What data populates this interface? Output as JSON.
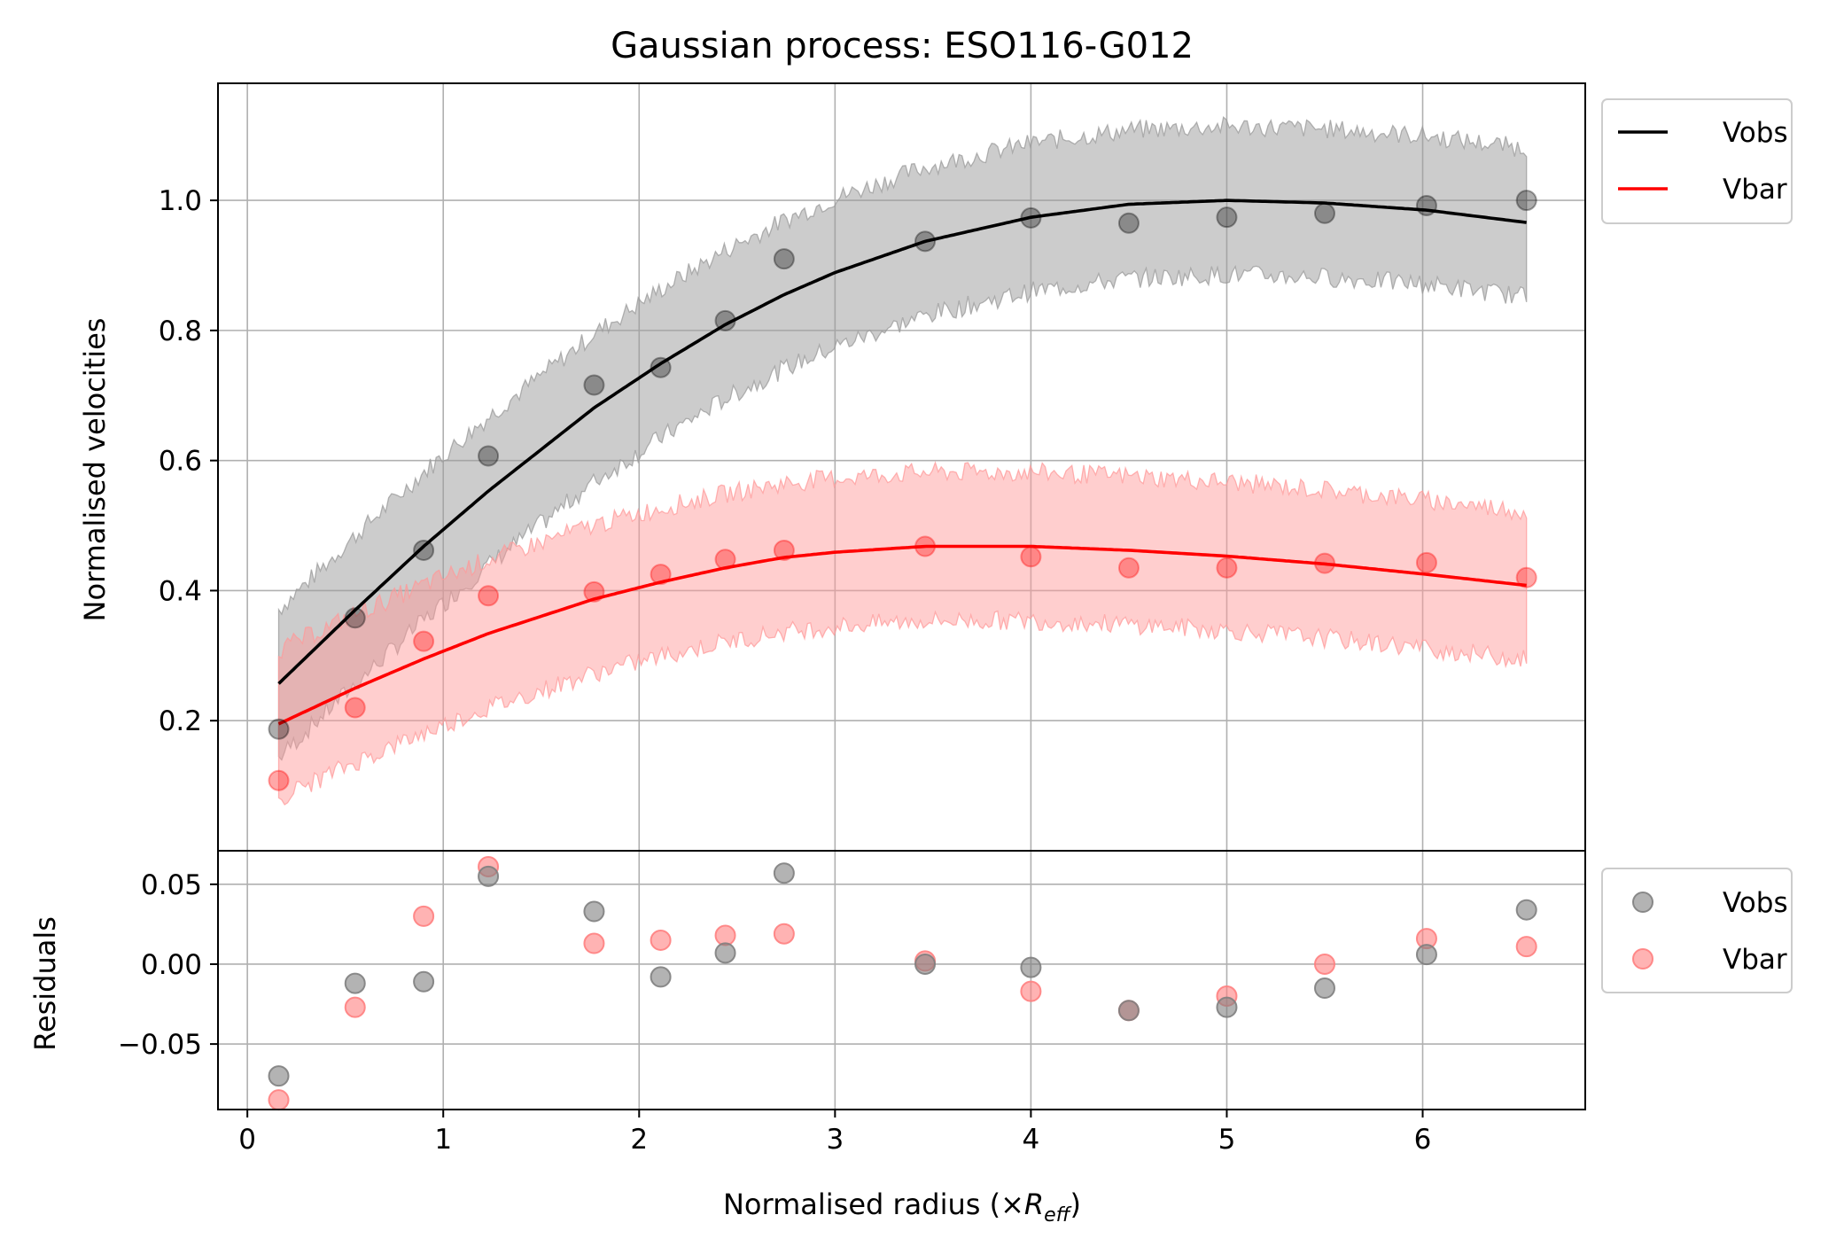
{
  "chart_data": [
    {
      "type": "line",
      "title": "Gaussian process: ESO116-G012",
      "xlabel": "Normalised radius (×",
      "xlabel_math": "R",
      "xlabel_math_sub": "eff",
      "xlabel_close": ")",
      "ylabel": "Normalised velocities",
      "xlim": [
        -0.15,
        6.83
      ],
      "ylim": [
        0.0,
        1.18
      ],
      "xticks": [
        0,
        1,
        2,
        3,
        4,
        5,
        6
      ],
      "xtick_labels": [
        "0",
        "1",
        "2",
        "3",
        "4",
        "5",
        "6"
      ],
      "yticks": [
        0.2,
        0.4,
        0.6,
        0.8,
        1.0
      ],
      "ytick_labels": [
        "0.2",
        "0.4",
        "0.6",
        "0.8",
        "1.0"
      ],
      "grid": true,
      "legend_position": "outside-top-right",
      "legend": [
        "Vobs",
        "Vbar"
      ],
      "radius": [
        0.16,
        0.55,
        0.9,
        1.23,
        1.77,
        2.11,
        2.44,
        2.74,
        3.46,
        4.0,
        4.5,
        5.0,
        5.5,
        6.02,
        6.53
      ],
      "series": [
        {
          "name": "Vobs",
          "color": "#000000",
          "band_color": "#999999",
          "band_halfwidth": [
            0.12,
            0.12
          ],
          "fit_x": [
            0.16,
            0.55,
            0.9,
            1.23,
            1.77,
            2.11,
            2.44,
            2.74,
            3.0,
            3.46,
            4.0,
            4.5,
            5.0,
            5.5,
            6.02,
            6.53
          ],
          "fit_y": [
            0.257,
            0.37,
            0.468,
            0.553,
            0.681,
            0.749,
            0.809,
            0.855,
            0.889,
            0.937,
            0.974,
            0.994,
            1.0,
            0.996,
            0.985,
            0.966
          ],
          "points": [
            0.187,
            0.358,
            0.462,
            0.607,
            0.716,
            0.743,
            0.815,
            0.91,
            0.937,
            0.973,
            0.965,
            0.974,
            0.98,
            0.992,
            1.0
          ]
        },
        {
          "name": "Vbar",
          "color": "#ff0000",
          "band_color": "#ff9999",
          "band_halfwidth": [
            0.12,
            0.12
          ],
          "fit_x": [
            0.16,
            0.55,
            0.9,
            1.23,
            1.77,
            2.11,
            2.44,
            2.74,
            3.0,
            3.46,
            4.0,
            4.5,
            5.0,
            5.5,
            6.02,
            6.53
          ],
          "fit_y": [
            0.195,
            0.25,
            0.295,
            0.334,
            0.387,
            0.413,
            0.435,
            0.451,
            0.459,
            0.468,
            0.468,
            0.462,
            0.453,
            0.441,
            0.425,
            0.408
          ],
          "points": [
            0.108,
            0.22,
            0.322,
            0.392,
            0.398,
            0.425,
            0.448,
            0.462,
            0.468,
            0.452,
            0.435,
            0.435,
            0.442,
            0.443,
            0.42
          ]
        }
      ]
    },
    {
      "type": "scatter",
      "xlabel": "Normalised radius (×Reff)",
      "ylabel": "Residuals",
      "xlim": [
        -0.15,
        6.83
      ],
      "ylim": [
        -0.091,
        0.071
      ],
      "xticks": [
        0,
        1,
        2,
        3,
        4,
        5,
        6
      ],
      "xtick_labels": [
        "0",
        "1",
        "2",
        "3",
        "4",
        "5",
        "6"
      ],
      "yticks": [
        0.05,
        0.0,
        -0.05
      ],
      "ytick_labels": [
        "0.05",
        "0.00",
        "−0.05"
      ],
      "grid": true,
      "legend_position": "outside-top-right",
      "legend": [
        "Vobs",
        "Vbar"
      ],
      "x": [
        0.16,
        0.55,
        0.9,
        1.23,
        1.77,
        2.11,
        2.44,
        2.74,
        3.46,
        4.0,
        4.5,
        5.0,
        5.5,
        6.02,
        6.53
      ],
      "series": [
        {
          "name": "Vobs",
          "color": "#808080",
          "values": [
            -0.07,
            -0.012,
            -0.011,
            0.055,
            0.033,
            -0.008,
            0.007,
            0.057,
            0.0,
            -0.002,
            -0.029,
            -0.027,
            -0.015,
            0.006,
            0.034
          ]
        },
        {
          "name": "Vbar",
          "color": "#ff8080",
          "values": [
            -0.085,
            -0.027,
            0.03,
            0.061,
            0.013,
            0.015,
            0.018,
            0.019,
            0.002,
            -0.017,
            -0.029,
            -0.02,
            0.0,
            0.016,
            0.011
          ]
        }
      ]
    }
  ]
}
